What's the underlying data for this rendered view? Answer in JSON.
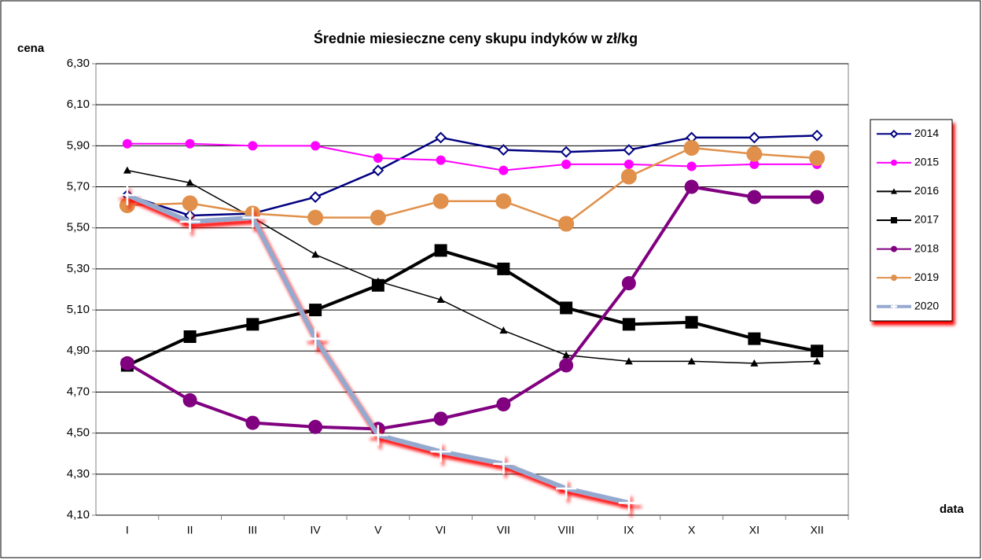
{
  "chart_data": {
    "type": "line",
    "title": "Średnie miesieczne ceny skupu indyków w zł/kg",
    "y_label": "cena",
    "x_label": "data",
    "categories": [
      "I",
      "II",
      "III",
      "IV",
      "V",
      "VI",
      "VII",
      "VIII",
      "IX",
      "X",
      "XI",
      "XII"
    ],
    "ylim": [
      4.1,
      6.3
    ],
    "yticks": [
      {
        "value": 4.1,
        "label": "4,10"
      },
      {
        "value": 4.3,
        "label": "4,30"
      },
      {
        "value": 4.5,
        "label": "4,50"
      },
      {
        "value": 4.7,
        "label": "4,70"
      },
      {
        "value": 4.9,
        "label": "4,90"
      },
      {
        "value": 5.1,
        "label": "5,10"
      },
      {
        "value": 5.3,
        "label": "5,30"
      },
      {
        "value": 5.5,
        "label": "5,50"
      },
      {
        "value": 5.7,
        "label": "5,70"
      },
      {
        "value": 5.9,
        "label": "5,90"
      },
      {
        "value": 6.1,
        "label": "6,10"
      },
      {
        "value": 6.3,
        "label": "6,30"
      }
    ],
    "grid": true,
    "legend": "right",
    "series": [
      {
        "name": "2014",
        "color": "#000080",
        "marker": "diamond",
        "values": [
          5.66,
          5.56,
          5.57,
          5.65,
          5.78,
          5.94,
          5.88,
          5.87,
          5.88,
          5.94,
          5.94,
          5.95
        ]
      },
      {
        "name": "2015",
        "color": "#ff00ff",
        "marker": "circle",
        "values": [
          5.91,
          5.91,
          5.9,
          5.9,
          5.84,
          5.83,
          5.78,
          5.81,
          5.81,
          5.8,
          5.81,
          5.81
        ]
      },
      {
        "name": "2016",
        "color": "#000000",
        "marker": "triangle",
        "values": [
          5.78,
          5.72,
          5.55,
          5.37,
          5.24,
          5.15,
          5.0,
          4.88,
          4.85,
          4.85,
          4.84,
          4.85
        ]
      },
      {
        "name": "2017",
        "color": "#000000",
        "marker": "square",
        "values": [
          4.83,
          4.97,
          5.03,
          5.1,
          5.22,
          5.39,
          5.3,
          5.11,
          5.03,
          5.04,
          4.96,
          4.9
        ]
      },
      {
        "name": "2018",
        "color": "#800080",
        "marker": "circle",
        "values": [
          4.84,
          4.66,
          4.55,
          4.53,
          4.52,
          4.57,
          4.64,
          4.83,
          5.23,
          5.7,
          5.65,
          5.65
        ]
      },
      {
        "name": "2019",
        "color": "#e0904a",
        "marker": "circle",
        "values": [
          5.61,
          5.62,
          5.57,
          5.55,
          5.55,
          5.63,
          5.63,
          5.52,
          5.75,
          5.89,
          5.86,
          5.84
        ]
      },
      {
        "name": "2020",
        "color": "#95a9cf",
        "marker": "plus",
        "values": [
          5.66,
          5.53,
          5.55,
          4.96,
          4.49,
          4.41,
          4.35,
          4.23,
          4.16,
          null,
          null,
          null
        ]
      }
    ]
  }
}
